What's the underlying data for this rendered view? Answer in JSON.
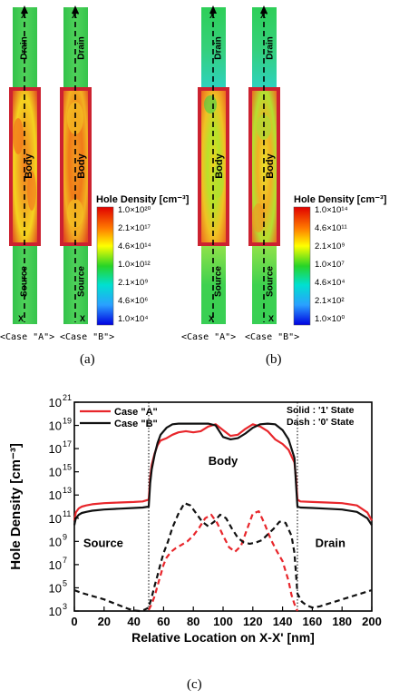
{
  "panel_a": {
    "label": "(a)",
    "case_a_label": "<Case \"A\">",
    "case_b_label": "<Case \"B\">",
    "legend": {
      "title": "Hole Density [cm⁻³]",
      "ticks": [
        "1.0×10²⁰",
        "2.1×10¹⁷",
        "4.6×10¹⁴",
        "1.0×10¹²",
        "2.1×10⁹",
        "4.6×10⁶",
        "1.0×10⁴"
      ]
    }
  },
  "panel_b": {
    "label": "(b)",
    "case_a_label": "<Case \"A\">",
    "case_b_label": "<Case \"B\">",
    "legend": {
      "title": "Hole Density [cm⁻³]",
      "ticks": [
        "1.0×10¹⁴",
        "4.6×10¹¹",
        "2.1×10⁹",
        "1.0×10⁷",
        "4.6×10⁴",
        "2.1×10²",
        "1.0×10⁰"
      ]
    }
  },
  "device": {
    "drain": "Drain",
    "body": "Body",
    "source": "Source",
    "x_top_a": "X",
    "x_top_b": "X'",
    "x_bot": "X"
  },
  "panel_c": {
    "label": "(c)",
    "legend": [
      "Case \"A\"",
      "Case \"B\""
    ],
    "state_solid": "Solid : '1' State",
    "state_dash": "Dash : '0' State",
    "regions": [
      "Source",
      "Body",
      "Drain"
    ]
  },
  "chart_data": {
    "type": "line",
    "xlabel": "Relative Location on X-X' [nm]",
    "ylabel": "Hole Density [cm⁻³]",
    "xlim": [
      0,
      200
    ],
    "ylim": [
      1000,
      1e+21
    ],
    "yscale": "log",
    "xticks": [
      0,
      20,
      40,
      60,
      80,
      100,
      120,
      140,
      160,
      180,
      200
    ],
    "yticks": [
      {
        "mant": "10",
        "exp": "21"
      },
      {
        "mant": "10",
        "exp": "19"
      },
      {
        "mant": "10",
        "exp": "17"
      },
      {
        "mant": "10",
        "exp": "15"
      },
      {
        "mant": "10",
        "exp": "13"
      },
      {
        "mant": "10",
        "exp": "11"
      },
      {
        "mant": "10",
        "exp": "9"
      },
      {
        "mant": "10",
        "exp": "7"
      },
      {
        "mant": "10",
        "exp": "5"
      },
      {
        "mant": "10",
        "exp": "3"
      }
    ],
    "series": [
      {
        "name": "Case \"A\"",
        "state": "1",
        "color": "#e8262b",
        "dash": false,
        "x": [
          0,
          1,
          3,
          5,
          8,
          12,
          20,
          30,
          40,
          46,
          50,
          51,
          52,
          54,
          56,
          58,
          62,
          66,
          70,
          75,
          80,
          85,
          90,
          95,
          100,
          105,
          110,
          115,
          120,
          125,
          130,
          135,
          140,
          144,
          148,
          149,
          150,
          152,
          160,
          170,
          180,
          190,
          197,
          200
        ],
        "log_y": [
          10.8,
          11.5,
          11.85,
          12.0,
          12.1,
          12.2,
          12.3,
          12.35,
          12.4,
          12.45,
          12.6,
          14.5,
          15.6,
          16.6,
          17.3,
          17.7,
          17.9,
          18.2,
          18.4,
          18.5,
          18.4,
          18.5,
          18.9,
          19.1,
          18.6,
          18.1,
          18.2,
          18.7,
          19.1,
          18.9,
          18.5,
          17.8,
          17.4,
          16.9,
          15.8,
          14.5,
          12.6,
          12.45,
          12.4,
          12.35,
          12.3,
          12.1,
          11.5,
          10.8
        ]
      },
      {
        "name": "Case \"B\"",
        "state": "1",
        "color": "#111111",
        "dash": false,
        "x": [
          0,
          1,
          3,
          5,
          8,
          12,
          20,
          30,
          40,
          46,
          50,
          51,
          52,
          54,
          56,
          58,
          62,
          66,
          70,
          75,
          80,
          85,
          90,
          95,
          100,
          105,
          110,
          115,
          120,
          125,
          130,
          135,
          140,
          144,
          148,
          149,
          150,
          152,
          160,
          170,
          180,
          190,
          197,
          200
        ],
        "log_y": [
          10.4,
          11.0,
          11.3,
          11.45,
          11.55,
          11.65,
          11.75,
          11.82,
          11.88,
          11.92,
          12.0,
          14.0,
          15.2,
          16.5,
          17.5,
          18.2,
          18.8,
          19.1,
          19.15,
          19.15,
          19.15,
          19.15,
          19.15,
          19.0,
          18.0,
          17.8,
          17.9,
          18.3,
          18.8,
          19.1,
          19.15,
          19.1,
          18.6,
          17.8,
          16.2,
          14.0,
          12.0,
          11.92,
          11.88,
          11.82,
          11.75,
          11.55,
          11.0,
          10.4
        ]
      },
      {
        "name": "Case \"A\"",
        "state": "0",
        "color": "#e8262b",
        "dash": true,
        "x": [
          50,
          52,
          54,
          56,
          58,
          60,
          62,
          65,
          68,
          72,
          76,
          80,
          84,
          88,
          92,
          96,
          100,
          104,
          108,
          112,
          116,
          120,
          124,
          128,
          132,
          136,
          140,
          144,
          146,
          148,
          150
        ],
        "log_y": [
          3.1,
          3.6,
          4.3,
          5.2,
          6.1,
          7.0,
          7.6,
          8.1,
          8.4,
          8.7,
          9.0,
          9.5,
          10.2,
          11.0,
          11.3,
          10.6,
          9.5,
          8.5,
          8.1,
          8.6,
          10.0,
          11.4,
          11.6,
          10.5,
          9.2,
          8.2,
          7.3,
          5.6,
          4.4,
          3.6,
          3.0
        ]
      },
      {
        "name": "Case \"B\"",
        "state": "0",
        "color": "#111111",
        "dash": true,
        "x": [
          0,
          4,
          8,
          12,
          16,
          20,
          24,
          28,
          32,
          36,
          40,
          44,
          47,
          50,
          52,
          54,
          56,
          58,
          60,
          63,
          66,
          70,
          74,
          78,
          82,
          86,
          90,
          94,
          98,
          102,
          106,
          110,
          114,
          118,
          122,
          126,
          130,
          134,
          138,
          142,
          146,
          148,
          150,
          153,
          156,
          160,
          165,
          170,
          175,
          180,
          185,
          190,
          195,
          200
        ],
        "log_y": [
          4.8,
          4.6,
          4.45,
          4.3,
          4.15,
          4.0,
          3.8,
          3.6,
          3.4,
          3.2,
          3.05,
          3.0,
          3.1,
          3.3,
          4.2,
          5.2,
          6.1,
          7.1,
          8.0,
          9.0,
          10.2,
          11.4,
          12.3,
          12.1,
          11.4,
          10.7,
          10.3,
          10.7,
          11.3,
          11.0,
          10.1,
          9.3,
          8.9,
          8.8,
          8.9,
          9.1,
          9.6,
          10.1,
          10.7,
          10.6,
          9.5,
          8.0,
          4.5,
          3.8,
          3.5,
          3.3,
          3.4,
          3.6,
          3.8,
          4.0,
          4.2,
          4.4,
          4.6,
          4.8
        ]
      }
    ]
  }
}
